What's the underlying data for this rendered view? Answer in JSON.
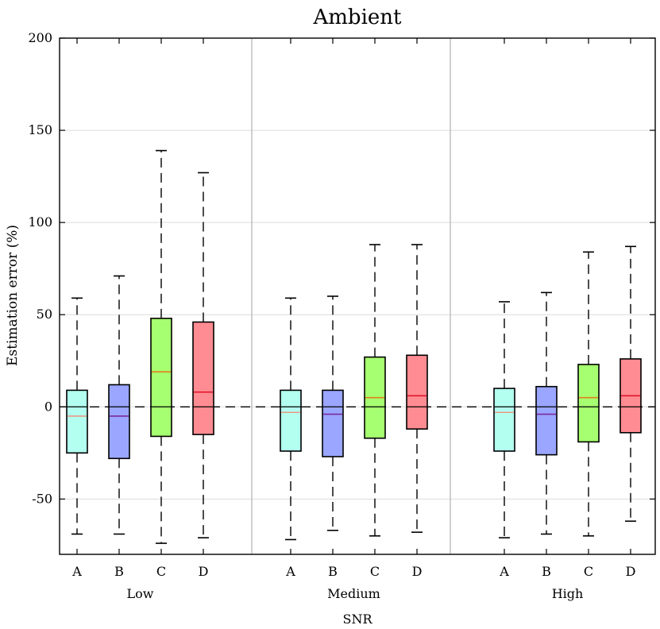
{
  "chart_data": {
    "type": "box",
    "title": "Ambient",
    "xlabel": "SNR",
    "ylabel": "Estimation error (%)",
    "ylim": [
      -80,
      200
    ],
    "yticks": [
      -50,
      0,
      50,
      100,
      150,
      200
    ],
    "ytick_labels": [
      "-50",
      "0",
      "50",
      "100",
      "150",
      "200"
    ],
    "grid": true,
    "reference_line": 0,
    "method_colors": {
      "A": {
        "fill": "#b3fff0",
        "median": "#e89a86"
      },
      "B": {
        "fill": "#9aa6ff",
        "median": "#7a2a9a"
      },
      "C": {
        "fill": "#a6ff70",
        "median": "#e0801e"
      },
      "D": {
        "fill": "#ff8c92",
        "median": "#e0142c"
      }
    },
    "groups": [
      {
        "label": "Low",
        "boxes": [
          {
            "method": "A",
            "whisker_low": -69,
            "q1": -25,
            "median": -5,
            "q3": 9,
            "whisker_high": 59
          },
          {
            "method": "B",
            "whisker_low": -69,
            "q1": -28,
            "median": -5,
            "q3": 12,
            "whisker_high": 71
          },
          {
            "method": "C",
            "whisker_low": -74,
            "q1": -16,
            "median": 19,
            "q3": 48,
            "whisker_high": 139
          },
          {
            "method": "D",
            "whisker_low": -71,
            "q1": -15,
            "median": 8,
            "q3": 46,
            "whisker_high": 127
          }
        ]
      },
      {
        "label": "Medium",
        "boxes": [
          {
            "method": "A",
            "whisker_low": -72,
            "q1": -24,
            "median": -3,
            "q3": 9,
            "whisker_high": 59
          },
          {
            "method": "B",
            "whisker_low": -67,
            "q1": -27,
            "median": -4,
            "q3": 9,
            "whisker_high": 60
          },
          {
            "method": "C",
            "whisker_low": -70,
            "q1": -17,
            "median": 5,
            "q3": 27,
            "whisker_high": 88
          },
          {
            "method": "D",
            "whisker_low": -68,
            "q1": -12,
            "median": 6,
            "q3": 28,
            "whisker_high": 88
          }
        ]
      },
      {
        "label": "High",
        "boxes": [
          {
            "method": "A",
            "whisker_low": -71,
            "q1": -24,
            "median": -3,
            "q3": 10,
            "whisker_high": 57
          },
          {
            "method": "B",
            "whisker_low": -69,
            "q1": -26,
            "median": -4,
            "q3": 11,
            "whisker_high": 62
          },
          {
            "method": "C",
            "whisker_low": -70,
            "q1": -19,
            "median": 5,
            "q3": 23,
            "whisker_high": 84
          },
          {
            "method": "D",
            "whisker_low": -62,
            "q1": -14,
            "median": 6,
            "q3": 26,
            "whisker_high": 87
          }
        ]
      }
    ]
  }
}
